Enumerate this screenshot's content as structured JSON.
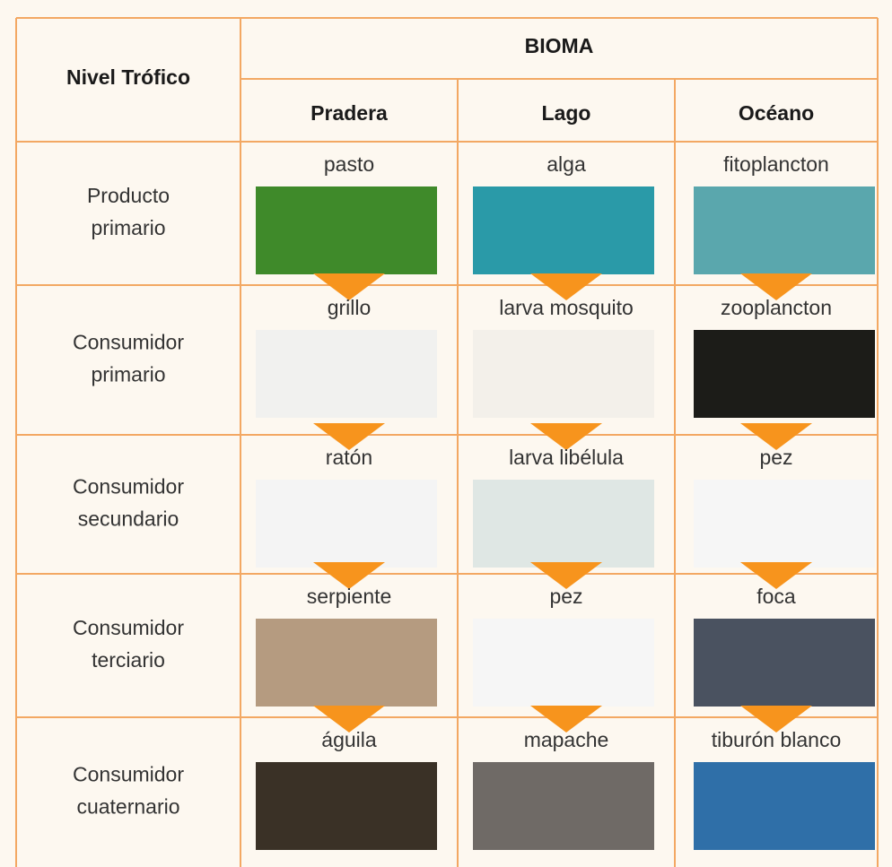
{
  "header": {
    "level_title": "Nivel Trófico",
    "group_title": "BIOMA",
    "biomes": [
      "Pradera",
      "Lago",
      "Océano"
    ]
  },
  "rows": [
    {
      "level": [
        "Producto",
        "primario"
      ],
      "cells": [
        "pasto",
        "alga",
        "fitoplancton"
      ]
    },
    {
      "level": [
        "Consumidor",
        "primario"
      ],
      "cells": [
        "grillo",
        "larva mosquito",
        "zooplancton"
      ]
    },
    {
      "level": [
        "Consumidor",
        "secundario"
      ],
      "cells": [
        "ratón",
        "larva libélula",
        "pez"
      ]
    },
    {
      "level": [
        "Consumidor",
        "terciario"
      ],
      "cells": [
        "serpiente",
        "pez",
        "foca"
      ]
    },
    {
      "level": [
        "Consumidor",
        "cuaternario"
      ],
      "cells": [
        "águila",
        "mapache",
        "tiburón blanco"
      ]
    }
  ]
}
